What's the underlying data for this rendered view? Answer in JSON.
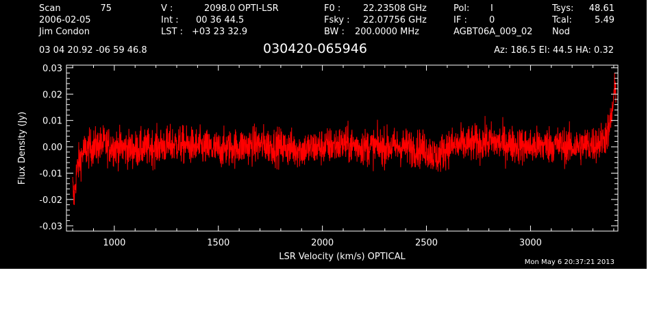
{
  "header": {
    "scan_label": "Scan",
    "scan_value": "75",
    "date": "2006-02-05",
    "observer": "Jim Condon",
    "v_label": "V   :",
    "v_value": "2098.0 OPTI-LSR",
    "int_label": "Int  :",
    "int_value": "00 36 44.5",
    "lst_label": "LST :",
    "lst_value": "+03 23 32.9",
    "f0_label": "F0   :",
    "f0_value": "22.23508 GHz",
    "fsky_label": "Fsky :",
    "fsky_value": "22.07756 GHz",
    "bw_label": "BW   :",
    "bw_value": "200.0000 MHz",
    "pol_label": "Pol:",
    "pol_value": "I",
    "if_label": "IF :",
    "if_value": "0",
    "project": "AGBT06A_009_02",
    "tsys_label": "Tsys:",
    "tsys_value": "48.61",
    "tcal_label": "Tcal:",
    "tcal_value": "5.49",
    "procedure": "Nod",
    "coords": "03 04 20.92  -06 59 46.8",
    "source": "030420-065946",
    "az_el_ha": "Az: 186.5  El:  44.5  HA:  0.32"
  },
  "timestamp": "Mon May  6 20:37:21 2013",
  "colors": {
    "background": "#000000",
    "axes": "#ffffff",
    "trace": "#ff0000"
  },
  "chart_data": {
    "type": "line",
    "title": "",
    "xlabel": "LSR Velocity (km/s) OPTICAL",
    "ylabel": "Flux Density (Jy)",
    "xlim": [
      770,
      3420
    ],
    "ylim": [
      -0.032,
      0.031
    ],
    "x_ticks": [
      1000,
      1500,
      2000,
      2500,
      3000
    ],
    "x_tick_labels": [
      "1000",
      "1500",
      "2000",
      "2500",
      "3000"
    ],
    "y_ticks": [
      -0.03,
      -0.02,
      -0.01,
      0.0,
      0.01,
      0.02,
      0.03
    ],
    "y_tick_labels": [
      "-0.03",
      "-0.02",
      "-0.01",
      "0.00",
      "0.01",
      "0.02",
      "0.03"
    ],
    "grid": false,
    "series": [
      {
        "color": "#ff0000",
        "x": [
          800,
          805,
          810,
          815,
          820,
          830,
          840,
          850,
          870,
          900,
          950,
          1000,
          1100,
          1200,
          1300,
          1400,
          1500,
          1600,
          1700,
          1800,
          1900,
          2000,
          2100,
          2200,
          2300,
          2400,
          2500,
          2550,
          2600,
          2700,
          2800,
          2900,
          3000,
          3100,
          3200,
          3300,
          3340,
          3360,
          3380,
          3390,
          3400,
          3405,
          3410
        ],
        "y": [
          -0.015,
          -0.02,
          -0.017,
          -0.012,
          -0.009,
          -0.006,
          -0.004,
          -0.002,
          -0.001,
          0.0,
          0.001,
          0.0,
          -0.001,
          0.0,
          0.001,
          0.0,
          -0.001,
          0.0,
          0.001,
          0.0,
          -0.001,
          0.0,
          0.001,
          0.0,
          0.0,
          0.0,
          -0.001,
          -0.004,
          0.0,
          0.001,
          0.002,
          0.001,
          0.0,
          0.001,
          0.0,
          0.001,
          0.002,
          0.004,
          0.007,
          0.012,
          0.018,
          0.021,
          0.023
        ],
        "noise_rms": 0.0035
      }
    ]
  }
}
